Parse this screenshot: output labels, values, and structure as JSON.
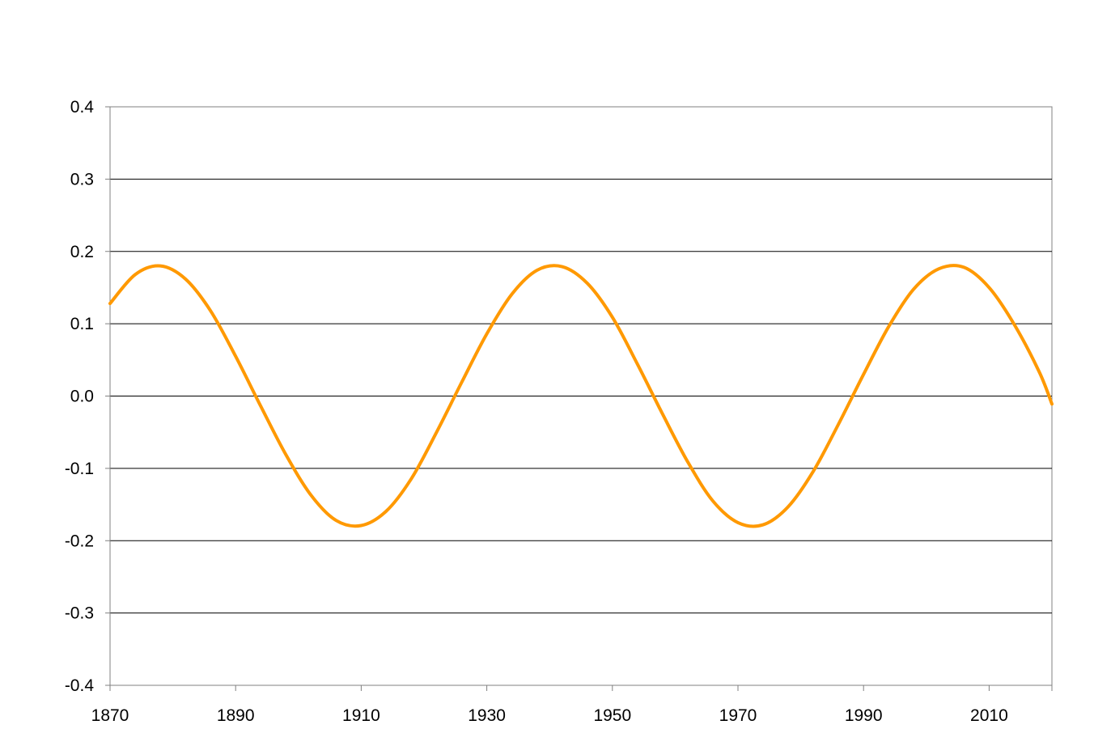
{
  "chart_data": {
    "type": "line",
    "title": "",
    "xlabel": "",
    "ylabel": "",
    "xlim": [
      1870,
      2020
    ],
    "ylim": [
      -0.4,
      0.4
    ],
    "x_ticks": [
      1870,
      1890,
      1910,
      1930,
      1950,
      1970,
      1990,
      2010
    ],
    "x_tick_labels": [
      "1870",
      "1890",
      "1910",
      "1930",
      "1950",
      "1970",
      "1990",
      "2010"
    ],
    "y_ticks": [
      0.4,
      0.3,
      0.2,
      0.1,
      0.0,
      -0.1,
      -0.2,
      -0.3,
      -0.4
    ],
    "y_tick_labels": [
      "0.4",
      "0.3",
      "0.2",
      "0.1",
      "0.0",
      "-0.1",
      "-0.2",
      "-0.3",
      "-0.4"
    ],
    "grid": "horizontal",
    "legend": "none",
    "series": [
      {
        "color": "#FF9900",
        "x": [
          1870,
          1874,
          1878,
          1882,
          1886,
          1890,
          1894,
          1898,
          1902,
          1906,
          1910,
          1914,
          1918,
          1922,
          1926,
          1930,
          1934,
          1938,
          1942,
          1946,
          1950,
          1954,
          1958,
          1962,
          1966,
          1970,
          1974,
          1978,
          1982,
          1986,
          1990,
          1994,
          1998,
          2002,
          2006,
          2010,
          2014,
          2018,
          2020
        ],
        "y": [
          0.128,
          0.168,
          0.18,
          0.162,
          0.118,
          0.055,
          -0.014,
          -0.081,
          -0.137,
          -0.172,
          -0.179,
          -0.159,
          -0.114,
          -0.05,
          0.019,
          0.086,
          0.141,
          0.174,
          0.179,
          0.156,
          0.109,
          0.044,
          -0.025,
          -0.091,
          -0.145,
          -0.175,
          -0.178,
          -0.153,
          -0.104,
          -0.039,
          0.03,
          0.096,
          0.148,
          0.176,
          0.178,
          0.15,
          0.099,
          0.033,
          -0.011
        ]
      }
    ]
  }
}
